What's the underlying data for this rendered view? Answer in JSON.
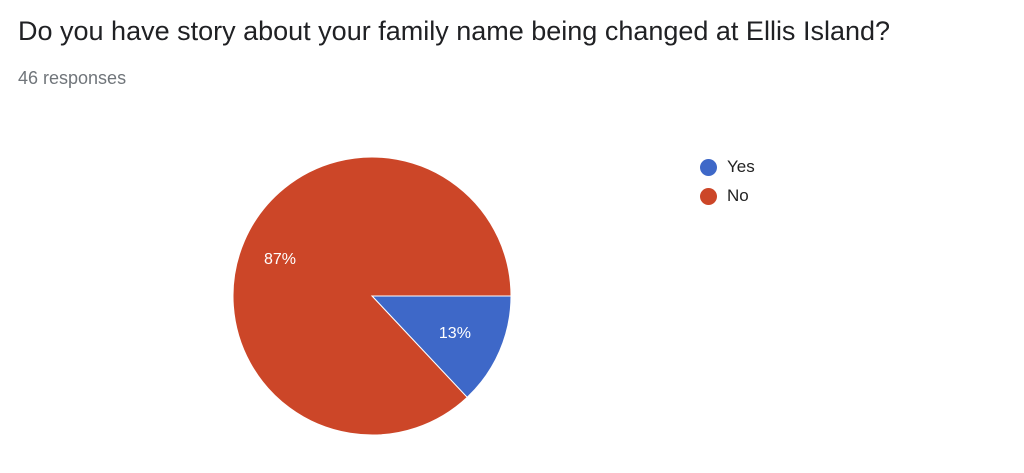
{
  "title": "Do you have story about your family name being changed at Ellis Island?",
  "responses": "46 responses",
  "chart_data": {
    "type": "pie",
    "categories": [
      "Yes",
      "No"
    ],
    "values": [
      13,
      87
    ],
    "labels": [
      "13%",
      "87%"
    ],
    "colors": [
      "#3e68c8",
      "#cc4628"
    ],
    "legend": "right"
  }
}
